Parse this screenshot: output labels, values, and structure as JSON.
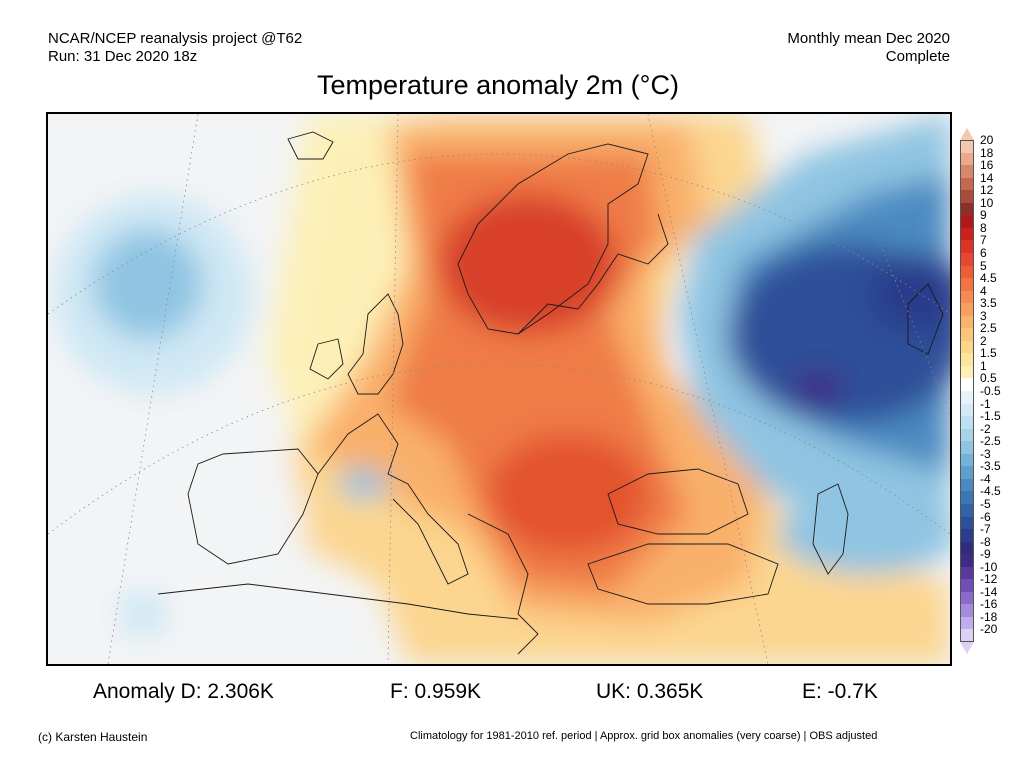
{
  "header": {
    "source": "NCAR/NCEP reanalysis project @T62",
    "run": "Run: 31 Dec 2020 18z",
    "period": "Monthly mean Dec 2020",
    "status": "Complete"
  },
  "title": "Temperature anomaly 2m (°C)",
  "colorbar": {
    "labels": [
      "20",
      "18",
      "16",
      "14",
      "12",
      "10",
      "9",
      "8",
      "7",
      "6",
      "5",
      "4.5",
      "4",
      "3.5",
      "3",
      "2.5",
      "2",
      "1.5",
      "1",
      "0.5",
      "-0.5",
      "-1",
      "-1.5",
      "-2",
      "-2.5",
      "-3",
      "-3.5",
      "-4",
      "-4.5",
      "-5",
      "-6",
      "-7",
      "-8",
      "-9",
      "-10",
      "-12",
      "-14",
      "-16",
      "-18",
      "-20"
    ],
    "colors": [
      "#f4c7b0",
      "#eba88a",
      "#d9876a",
      "#c4694f",
      "#a94c3a",
      "#8b2f27",
      "#b0191b",
      "#c9221c",
      "#dc3528",
      "#e8472f",
      "#ee5d38",
      "#f27444",
      "#f58b52",
      "#f8a15f",
      "#fab36b",
      "#fcc57b",
      "#fdd68c",
      "#fee49c",
      "#fdf0b7",
      "#ffffff",
      "#e7f3fa",
      "#d3eaf6",
      "#bfe0f1",
      "#a7d3ea",
      "#8fc4e2",
      "#76b2d8",
      "#5f9ecd",
      "#4b8ac1",
      "#3c76b4",
      "#3263a7",
      "#2e4f99",
      "#2b3d8c",
      "#2e2d7e",
      "#3f2a86",
      "#58399d",
      "#7050b6",
      "#8a6bcc",
      "#a58ade",
      "#c1acec",
      "#dcd0f7"
    ]
  },
  "anomalies": {
    "d": "Anomaly D: 2.306K",
    "f": "F: 0.959K",
    "uk": "UK: 0.365K",
    "e": "E: -0.7K"
  },
  "footer": {
    "credit": "(c) Karsten Haustein",
    "note": "Climatology for 1981-2010 ref. period | Approx. grid box anomalies (very coarse) | OBS adjusted"
  },
  "map_colors": {
    "ocean": "#f5f6f7",
    "warm_strong": "#d8402c",
    "warm_mid": "#ef7b47",
    "warm_light": "#f9b06a",
    "warm_pale": "#fcd690",
    "cold_light": "#cfe8f5",
    "cold_mid": "#8fc4e2",
    "cold_deep": "#2e4f99",
    "cold_violet": "#3f2a86"
  }
}
